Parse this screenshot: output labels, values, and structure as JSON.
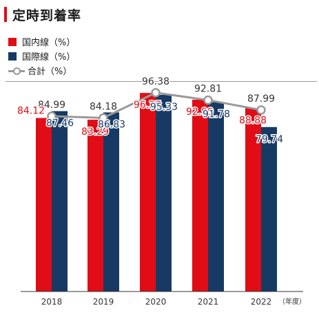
{
  "title": "定時到着率",
  "colors": {
    "domestic": "#e10c15",
    "international": "#173a64",
    "total": "#999999",
    "title_accent": "#e10c15"
  },
  "chart_data": {
    "type": "bar",
    "categories": [
      "2018",
      "2019",
      "2020",
      "2021",
      "2022"
    ],
    "category_suffix": "（年度）",
    "series": [
      {
        "name": "国内線（%）",
        "type": "bar",
        "values": [
          84.12,
          83.29,
          96.27,
          92.99,
          88.88
        ]
      },
      {
        "name": "国際線（%）",
        "type": "bar",
        "values": [
          87.46,
          86.83,
          95.33,
          91.78,
          79.74
        ]
      },
      {
        "name": "合計（%）",
        "type": "line",
        "values": [
          84.99,
          84.18,
          96.38,
          92.81,
          87.99
        ]
      }
    ],
    "value_labels": {
      "domestic": [
        "84.12",
        "83.29",
        "96.27",
        "92.99",
        "88.88"
      ],
      "international": [
        "87.46",
        "86.83",
        "95.33",
        "91.78",
        "79.74"
      ],
      "total": [
        "84.99",
        "84.18",
        "96.38",
        "92.81",
        "87.99"
      ]
    },
    "xlabel": "",
    "ylabel": "",
    "ylim": [
      0,
      100
    ],
    "grid": false,
    "legend_position": "top-left"
  }
}
